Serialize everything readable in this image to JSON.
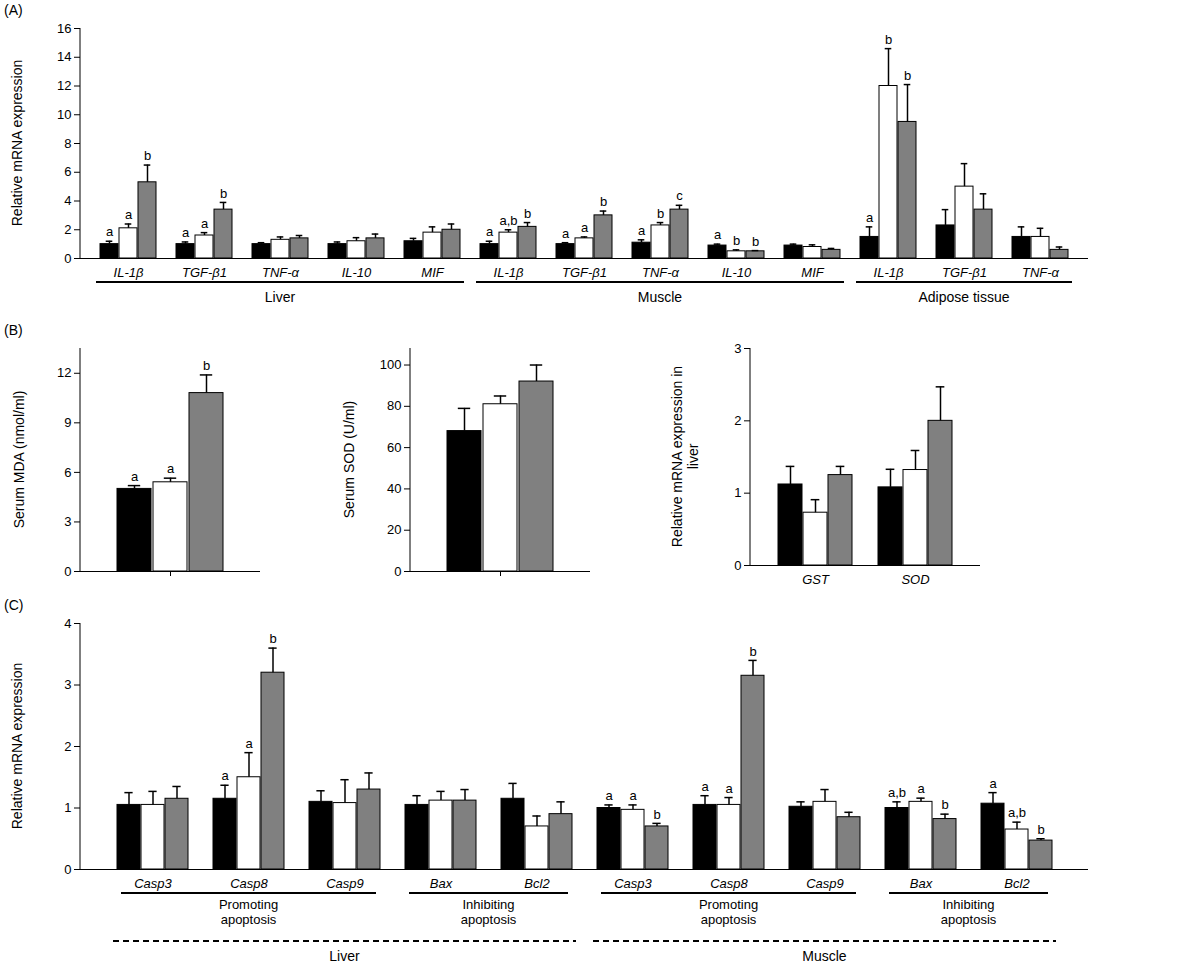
{
  "chart_data": [
    {
      "type": "bar",
      "panel_label": "(A)",
      "y_label": "Relative mRNA expression",
      "categories": [
        "IL-1β",
        "TGF-β1",
        "TNF-α",
        "IL-10",
        "MIF",
        "IL-1β",
        "TGF-β1",
        "TNF-α",
        "IL-10",
        "MIF",
        "IL-1β",
        "TGF-β1",
        "TNF-α"
      ],
      "category_groups": [
        "Liver",
        "Liver",
        "Liver",
        "Liver",
        "Liver",
        "Muscle",
        "Muscle",
        "Muscle",
        "Muscle",
        "Muscle",
        "Adipose tissue",
        "Adipose tissue",
        "Adipose tissue"
      ],
      "ylim": [
        0,
        16
      ],
      "yticks": [
        0,
        2,
        4,
        6,
        8,
        10,
        12,
        14,
        16
      ],
      "series": [
        {
          "color": "#000000",
          "values": [
            1.0,
            1.0,
            1.0,
            1.0,
            1.2,
            1.0,
            1.0,
            1.1,
            0.9,
            0.9,
            1.5,
            2.3,
            1.5
          ],
          "errors": [
            0.2,
            0.15,
            0.1,
            0.15,
            0.2,
            0.2,
            0.1,
            0.2,
            0.1,
            0.1,
            0.7,
            1.1,
            0.7
          ],
          "letters": [
            "a",
            "a",
            null,
            null,
            null,
            "a",
            "a",
            "a",
            "a",
            null,
            "a",
            null,
            null
          ]
        },
        {
          "color": "#ffffff",
          "values": [
            2.1,
            1.6,
            1.3,
            1.2,
            1.8,
            1.8,
            1.4,
            2.3,
            0.5,
            0.8,
            12.0,
            5.0,
            1.5
          ],
          "errors": [
            0.3,
            0.2,
            0.2,
            0.25,
            0.4,
            0.2,
            0.1,
            0.2,
            0.1,
            0.15,
            2.6,
            1.6,
            0.6
          ],
          "letters": [
            "a",
            "a",
            null,
            null,
            null,
            "a,b",
            "a",
            "b",
            "b",
            null,
            "b",
            null,
            null
          ]
        },
        {
          "color": "#808080",
          "values": [
            5.3,
            3.4,
            1.4,
            1.4,
            2.0,
            2.2,
            3.0,
            3.4,
            0.5,
            0.6,
            9.5,
            3.4,
            0.6
          ],
          "errors": [
            1.2,
            0.5,
            0.2,
            0.3,
            0.4,
            0.3,
            0.3,
            0.3,
            0.05,
            0.1,
            2.6,
            1.1,
            0.2
          ],
          "letters": [
            "b",
            "b",
            null,
            null,
            null,
            "b",
            "b",
            "c",
            "b",
            null,
            "b",
            null,
            null
          ]
        }
      ]
    },
    {
      "type": "bar",
      "panel_label": "(B)",
      "y_label": "Serum MDA (nmol/ml)",
      "categories": [
        null
      ],
      "ylim": [
        0,
        13.5
      ],
      "yticks": [
        0,
        3,
        6,
        9,
        12
      ],
      "series": [
        {
          "color": "#000000",
          "values": [
            5.0
          ],
          "errors": [
            0.2
          ],
          "letters": [
            "a"
          ]
        },
        {
          "color": "#ffffff",
          "values": [
            5.4
          ],
          "errors": [
            0.25
          ],
          "letters": [
            "a"
          ]
        },
        {
          "color": "#808080",
          "values": [
            10.8
          ],
          "errors": [
            1.1
          ],
          "letters": [
            "b"
          ]
        }
      ]
    },
    {
      "type": "bar",
      "y_label": "Serum SOD (U/ml)",
      "categories": [
        null
      ],
      "ylim": [
        0,
        108
      ],
      "yticks": [
        0,
        20,
        40,
        60,
        80,
        100
      ],
      "series": [
        {
          "color": "#000000",
          "values": [
            68
          ],
          "errors": [
            11
          ],
          "letters": [
            null
          ]
        },
        {
          "color": "#ffffff",
          "values": [
            81
          ],
          "errors": [
            4
          ],
          "letters": [
            null
          ]
        },
        {
          "color": "#808080",
          "values": [
            92
          ],
          "errors": [
            8
          ],
          "letters": [
            null
          ]
        }
      ]
    },
    {
      "type": "bar",
      "y_label": "Relative mRNA expression in liver",
      "categories": [
        "GST",
        "SOD"
      ],
      "ylim": [
        0,
        3
      ],
      "yticks": [
        0,
        1,
        2,
        3
      ],
      "series": [
        {
          "color": "#000000",
          "values": [
            1.12,
            1.08
          ],
          "errors": [
            0.25,
            0.25
          ],
          "letters": [
            null,
            null
          ]
        },
        {
          "color": "#ffffff",
          "values": [
            0.73,
            1.32
          ],
          "errors": [
            0.18,
            0.27
          ],
          "letters": [
            null,
            null
          ]
        },
        {
          "color": "#808080",
          "values": [
            1.25,
            2.0
          ],
          "errors": [
            0.12,
            0.47
          ],
          "letters": [
            null,
            null
          ]
        }
      ]
    },
    {
      "type": "bar",
      "panel_label": "(C)",
      "y_label": "Relative mRNA expression",
      "categories": [
        "Casp3",
        "Casp8",
        "Casp9",
        "Bax",
        "Bcl2",
        "Casp3",
        "Casp8",
        "Casp9",
        "Bax",
        "Bcl2"
      ],
      "category_subgroups": [
        "Promoting apoptosis",
        "Promoting apoptosis",
        "Promoting apoptosis",
        "Inhibiting apoptosis",
        "Inhibiting apoptosis",
        "Promoting apoptosis",
        "Promoting apoptosis",
        "Promoting apoptosis",
        "Inhibiting apoptosis",
        "Inhibiting apoptosis"
      ],
      "category_groups": [
        "Liver",
        "Liver",
        "Liver",
        "Liver",
        "Liver",
        "Muscle",
        "Muscle",
        "Muscle",
        "Muscle",
        "Muscle"
      ],
      "ylim": [
        0,
        4
      ],
      "yticks": [
        0,
        1,
        2,
        3,
        4
      ],
      "series": [
        {
          "color": "#000000",
          "values": [
            1.05,
            1.15,
            1.1,
            1.05,
            1.15,
            1.0,
            1.05,
            1.02,
            1.0,
            1.07
          ],
          "errors": [
            0.2,
            0.22,
            0.18,
            0.15,
            0.25,
            0.05,
            0.15,
            0.08,
            0.1,
            0.18
          ],
          "letters": [
            null,
            "a",
            null,
            null,
            null,
            "a",
            "a",
            null,
            "a,b",
            "a"
          ]
        },
        {
          "color": "#ffffff",
          "values": [
            1.05,
            1.5,
            1.08,
            1.12,
            0.7,
            0.97,
            1.05,
            1.1,
            1.1,
            0.65
          ],
          "errors": [
            0.22,
            0.4,
            0.38,
            0.15,
            0.17,
            0.08,
            0.12,
            0.2,
            0.06,
            0.12
          ],
          "letters": [
            null,
            "a",
            null,
            null,
            null,
            "a",
            "a",
            null,
            "a",
            "a,b"
          ]
        },
        {
          "color": "#808080",
          "values": [
            1.15,
            3.2,
            1.3,
            1.12,
            0.9,
            0.7,
            3.15,
            0.85,
            0.82,
            0.47
          ],
          "errors": [
            0.2,
            0.4,
            0.27,
            0.18,
            0.2,
            0.05,
            0.25,
            0.08,
            0.08,
            0.03
          ],
          "letters": [
            null,
            "b",
            null,
            null,
            null,
            "b",
            "b",
            null,
            "b",
            "b"
          ]
        }
      ]
    }
  ]
}
